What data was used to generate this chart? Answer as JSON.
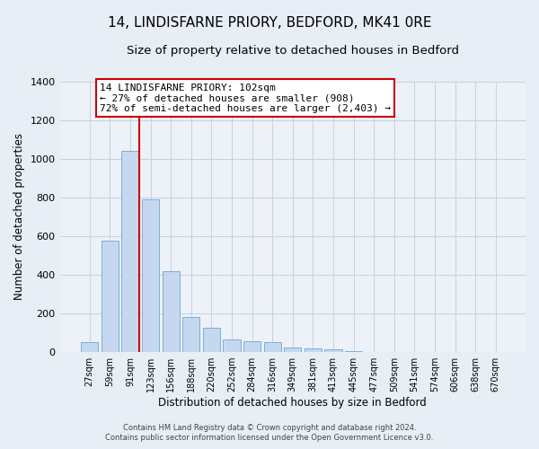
{
  "title": "14, LINDISFARNE PRIORY, BEDFORD, MK41 0RE",
  "subtitle": "Size of property relative to detached houses in Bedford",
  "xlabel": "Distribution of detached houses by size in Bedford",
  "ylabel": "Number of detached properties",
  "bar_labels": [
    "27sqm",
    "59sqm",
    "91sqm",
    "123sqm",
    "156sqm",
    "188sqm",
    "220sqm",
    "252sqm",
    "284sqm",
    "316sqm",
    "349sqm",
    "381sqm",
    "413sqm",
    "445sqm",
    "477sqm",
    "509sqm",
    "541sqm",
    "574sqm",
    "606sqm",
    "638sqm",
    "670sqm"
  ],
  "bar_values": [
    50,
    575,
    1040,
    790,
    420,
    180,
    125,
    65,
    55,
    50,
    25,
    20,
    15,
    5,
    0,
    0,
    0,
    0,
    0,
    0,
    0
  ],
  "bar_color": "#c5d8f0",
  "bar_edge_color": "#7bafd4",
  "vline_color": "#cc0000",
  "vline_x": 2.43,
  "annotation_title": "14 LINDISFARNE PRIORY: 102sqm",
  "annotation_line1": "← 27% of detached houses are smaller (908)",
  "annotation_line2": "72% of semi-detached houses are larger (2,403) →",
  "annotation_box_color": "#ffffff",
  "annotation_box_edge": "#cc0000",
  "ylim": [
    0,
    1400
  ],
  "yticks": [
    0,
    200,
    400,
    600,
    800,
    1000,
    1200,
    1400
  ],
  "bg_color": "#e8eef5",
  "plot_bg_color": "#edf1f8",
  "footer_line1": "Contains HM Land Registry data © Crown copyright and database right 2024.",
  "footer_line2": "Contains public sector information licensed under the Open Government Licence v3.0.",
  "title_fontsize": 11,
  "subtitle_fontsize": 9.5,
  "grid_color": "#c8d0e0"
}
